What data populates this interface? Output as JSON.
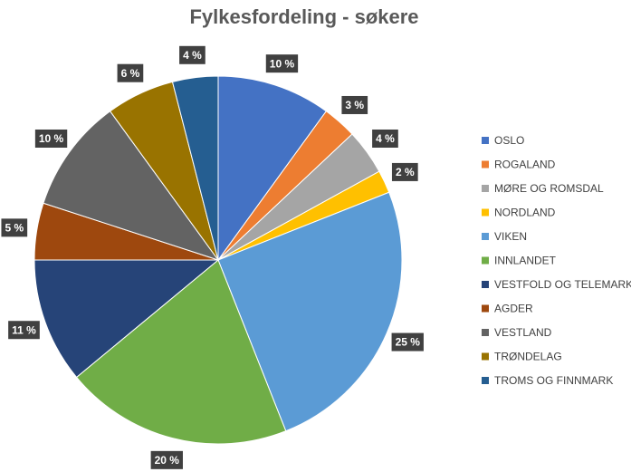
{
  "chart_data": {
    "type": "pie",
    "title": "Fylkesfordeling - søkere",
    "categories": [
      "OSLO",
      "ROGALAND",
      "MØRE OG ROMSDAL",
      "NORDLAND",
      "VIKEN",
      "INNLANDET",
      "VESTFOLD OG TELEMARK",
      "AGDER",
      "VESTLAND",
      "TRØNDELAG",
      "TROMS OG FINNMARK"
    ],
    "values": [
      10,
      3,
      4,
      2,
      25,
      20,
      11,
      5,
      10,
      6,
      4
    ],
    "value_labels": [
      "10 %",
      "3 %",
      "4 %",
      "2 %",
      "25 %",
      "20 %",
      "11 %",
      "5 %",
      "10 %",
      "6 %",
      "4 %"
    ],
    "colors": [
      "#4472c4",
      "#ed7d31",
      "#a5a5a5",
      "#ffc000",
      "#5b9bd5",
      "#70ad47",
      "#264478",
      "#9e480e",
      "#636363",
      "#997300",
      "#255e91"
    ],
    "legend": "right"
  }
}
